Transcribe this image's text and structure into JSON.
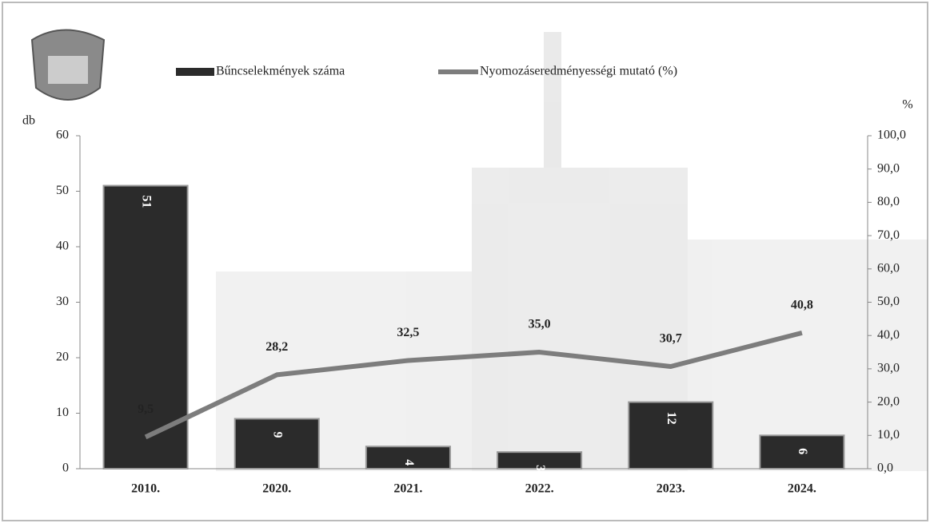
{
  "chart_data": {
    "type": "bar+line",
    "categories": [
      "2010.",
      "2020.",
      "2021.",
      "2022.",
      "2023.",
      "2024."
    ],
    "series": [
      {
        "name": "Bűncselekmények száma",
        "color": "#2b2b2b",
        "type": "bar",
        "values": [
          51,
          9,
          4,
          3,
          12,
          6
        ]
      },
      {
        "name": "Nyomozáseredményességi mutató (%)",
        "color": "#7d7d7d",
        "type": "line",
        "axis": "y2",
        "values": [
          9.5,
          28.2,
          32.5,
          35.0,
          30.7,
          40.8
        ],
        "value_labels": [
          "9,5",
          "28,2",
          "32,5",
          "35,0",
          "30,7",
          "40,8"
        ]
      }
    ],
    "ylabel": "db",
    "y2label": "%",
    "ylim": [
      0,
      60
    ],
    "yticks": [
      0,
      10,
      20,
      30,
      40,
      50,
      60
    ],
    "y2lim": [
      0,
      100
    ],
    "y2ticks": [
      {
        "value": 0,
        "label": "0,0"
      },
      {
        "value": 10,
        "label": "10,0"
      },
      {
        "value": 20,
        "label": "20,0"
      },
      {
        "value": 30,
        "label": "30,0"
      },
      {
        "value": 40,
        "label": "40,0"
      },
      {
        "value": 50,
        "label": "50,0"
      },
      {
        "value": 60,
        "label": "60,0"
      },
      {
        "value": 70,
        "label": "70,0"
      },
      {
        "value": 80,
        "label": "80,0"
      },
      {
        "value": 90,
        "label": "90,0"
      },
      {
        "value": 100,
        "label": "100,0"
      }
    ],
    "legend": "top"
  }
}
